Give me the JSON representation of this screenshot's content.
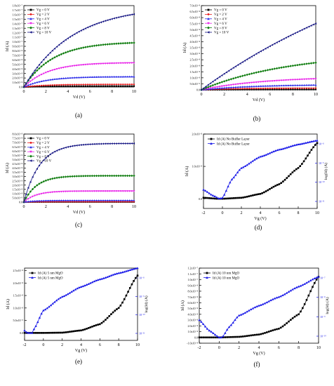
{
  "figure": {
    "panels": [
      "(a)",
      "(b)",
      "(c)",
      "(d)",
      "(e)",
      "(f)"
    ]
  },
  "chart_data": [
    {
      "type": "line",
      "label": "(a)",
      "xlabel": "Vd (V)",
      "ylabel": "Id (A)",
      "xlim": [
        0,
        10
      ],
      "ylim": [
        0,
        1.8e-07
      ],
      "xticks": [
        0,
        2,
        4,
        6,
        8,
        10
      ],
      "yticks": [
        0,
        1e-08,
        2e-08,
        3e-08,
        4e-08,
        5e-08,
        6e-08,
        7e-08,
        8e-08,
        9e-08,
        1e-07,
        1.1e-07,
        1.2e-07,
        1.3e-07,
        1.4e-07,
        1.5e-07,
        1.6e-07,
        1.7e-07,
        1.8e-07
      ],
      "ytick_labels": [
        "0.0",
        "1.0x10⁻⁸",
        "2.0x10⁻⁸",
        "3.0x10⁻⁸",
        "4.0x10⁻⁸",
        "5.0x10⁻⁸",
        "6.0x10⁻⁸",
        "7.0x10⁻⁸",
        "8.0x10⁻⁸",
        "9.0x10⁻⁸",
        "1.0x10⁻⁷",
        "1.1x10⁻⁷",
        "1.2x10⁻⁷",
        "1.3x10⁻⁷",
        "1.4x10⁻⁷",
        "1.5x10⁻⁷",
        "1.6x10⁻⁷",
        "1.7x10⁻⁷",
        "1.8x10⁻⁷"
      ],
      "legend": "top-left",
      "model": "saturation",
      "series": [
        {
          "name": "Vg = 0 V",
          "color": "#000000",
          "marker": "square",
          "sat": 2e-09,
          "k": 0.5
        },
        {
          "name": "Vg = 2 V",
          "color": "#e8191b",
          "marker": "circle",
          "sat": 6e-09,
          "k": 0.5
        },
        {
          "name": "Vg = 4 V",
          "color": "#2a2ae8",
          "marker": "triangle",
          "sat": 2.3e-08,
          "k": 0.5
        },
        {
          "name": "Vg = 6 V",
          "color": "#e820e8",
          "marker": "triangle-down",
          "sat": 5.4e-08,
          "k": 0.45
        },
        {
          "name": "Vg = 8 V",
          "color": "#107d10",
          "marker": "diamond",
          "sat": 1e-07,
          "k": 0.38
        },
        {
          "name": "Vg = 10 V",
          "color": "#101080",
          "marker": "triangle-left",
          "sat": 1.79e-07,
          "k": 0.23
        }
      ]
    },
    {
      "type": "line",
      "label": "(b)",
      "xlabel": "Vd (V)",
      "ylabel": "Id (A)",
      "xlim": [
        0,
        10
      ],
      "ylim": [
        0,
        7e-08
      ],
      "xticks": [
        0,
        2,
        4,
        6,
        8,
        10
      ],
      "yticks": [
        0,
        5e-09,
        1e-08,
        1.5e-08,
        2e-08,
        2.5e-08,
        3e-08,
        3.5e-08,
        4e-08,
        4.5e-08,
        5e-08,
        5.5e-08,
        6e-08,
        6.5e-08,
        7e-08
      ],
      "ytick_labels": [
        "0.0",
        "5.0x10⁻⁹",
        "1.0x10⁻⁸",
        "1.5x10⁻⁸",
        "2.0x10⁻⁸",
        "2.5x10⁻⁸",
        "3.0x10⁻⁸",
        "3.5x10⁻⁸",
        "4.0x10⁻⁸",
        "4.5x10⁻⁸",
        "5.0x10⁻⁸",
        "5.5x10⁻⁸",
        "6.0x10⁻⁸",
        "6.5x10⁻⁸",
        "7.0x10⁻⁸"
      ],
      "legend": "top-left",
      "model": "saturation",
      "series": [
        {
          "name": "Vg = 0 V",
          "color": "#000000",
          "marker": "square",
          "sat": 3e-10,
          "k": 0.3
        },
        {
          "name": "Vg = 2 V",
          "color": "#e8191b",
          "marker": "circle",
          "sat": 1.5e-09,
          "k": 0.3
        },
        {
          "name": "Vg = 4 V",
          "color": "#2a2ae8",
          "marker": "triangle",
          "sat": 4.5e-09,
          "k": 0.22
        },
        {
          "name": "Vg = 6 V",
          "color": "#e820e8",
          "marker": "triangle-down",
          "sat": 1.1e-08,
          "k": 0.18
        },
        {
          "name": "Vg = 8 V",
          "color": "#107d10",
          "marker": "diamond",
          "sat": 3.1e-08,
          "k": 0.13
        },
        {
          "name": "Vg = 10 V",
          "color": "#101080",
          "marker": "triangle-left",
          "sat": 1.4e-07,
          "k": 0.05
        }
      ]
    },
    {
      "type": "line",
      "label": "(c)",
      "xlabel": "Vd (V)",
      "ylabel": "Id (A)",
      "xlim": [
        0,
        10
      ],
      "ylim": [
        0,
        8e-08
      ],
      "xticks": [
        0,
        2,
        4,
        6,
        8,
        10
      ],
      "yticks": [
        0,
        5e-09,
        1e-08,
        1.5e-08,
        2e-08,
        2.5e-08,
        3e-08,
        3.5e-08,
        4e-08,
        4.5e-08,
        5e-08,
        5.5e-08,
        6e-08,
        6.5e-08,
        7e-08,
        7.5e-08,
        8e-08
      ],
      "ytick_labels": [
        "0.0",
        "5.0x10⁻⁹",
        "1.0x10⁻⁸",
        "1.5x10⁻⁸",
        "2.0x10⁻⁸",
        "2.5x10⁻⁸",
        "3.0x10⁻⁸",
        "3.5x10⁻⁸",
        "4.0x10⁻⁸",
        "4.5x10⁻⁸",
        "5.0x10⁻⁸",
        "5.5x10⁻⁸",
        "6.0x10⁻⁸",
        "6.5x10⁻⁸",
        "7.0x10⁻⁸",
        "7.5x10⁻⁸",
        "8.0x10⁻⁸"
      ],
      "legend": "top-left",
      "model": "saturation",
      "series": [
        {
          "name": "Vg = 0 V",
          "color": "#000000",
          "marker": "square",
          "sat": 2e-10,
          "k": 1.0
        },
        {
          "name": "Vg = 2 V",
          "color": "#e8191b",
          "marker": "circle",
          "sat": 5e-10,
          "k": 1.0
        },
        {
          "name": "Vg = 4 V",
          "color": "#2a2ae8",
          "marker": "triangle",
          "sat": 2e-09,
          "k": 1.0
        },
        {
          "name": "Vg = 6 V",
          "color": "#e820e8",
          "marker": "triangle-down",
          "sat": 1.3e-08,
          "k": 0.9
        },
        {
          "name": "Vg = 8 V",
          "color": "#107d10",
          "marker": "diamond",
          "sat": 3.1e-08,
          "k": 0.85
        },
        {
          "name": "Vg = 10 V",
          "color": "#101080",
          "marker": "triangle-left",
          "sat": 6.9e-08,
          "k": 0.7
        }
      ]
    },
    {
      "type": "line",
      "label": "(d)",
      "xlabel": "Vg (V)",
      "ylabel": "Id (A)",
      "ylabel_right": "log(Id) (A)",
      "xlim": [
        -2,
        10
      ],
      "ylim": [
        -3e-09,
        2e-08
      ],
      "xticks": [
        -2,
        0,
        2,
        4,
        6,
        8,
        10
      ],
      "yticks": [
        0,
        1e-08,
        2e-08
      ],
      "ytick_labels": [
        "0.0",
        "1.0x10⁻⁸",
        "2.0x10⁻⁸"
      ],
      "yticks_right_labels": [
        "10⁻⁸",
        "10⁻⁹",
        "10⁻¹⁰",
        "10⁻¹¹"
      ],
      "legend": "top-left",
      "model": "transfer",
      "series": [
        {
          "name": "Id (A) No Buffer Layer",
          "color": "#000000",
          "marker": "square",
          "axis": "left",
          "curve": [
            [
              -2,
              3e-10
            ],
            [
              -0.5,
              0
            ],
            [
              0,
              0
            ],
            [
              2,
              3e-10
            ],
            [
              4,
              1.5e-09
            ],
            [
              6,
              4.5e-09
            ],
            [
              8,
              9.5e-09
            ],
            [
              10,
              1.72e-08
            ]
          ]
        },
        {
          "name": "Id (A) No Buffer Layer",
          "color": "#1a1ae8",
          "marker": "triangle",
          "axis": "right",
          "curve": [
            [
              -2,
              2.8e-09
            ],
            [
              -1,
              1e-09
            ],
            [
              -0.3,
              0
            ],
            [
              0,
              3e-10
            ],
            [
              1,
              6e-09
            ],
            [
              2,
              9.5e-09
            ],
            [
              4,
              1.3e-08
            ],
            [
              6,
              1.52e-08
            ],
            [
              8,
              1.68e-08
            ],
            [
              10,
              1.8e-08
            ]
          ]
        }
      ]
    },
    {
      "type": "line",
      "label": "(e)",
      "xlabel": "Vg (V)",
      "ylabel": "Id (A)",
      "ylabel_right": "log(Id) (A)",
      "xlim": [
        -2,
        10
      ],
      "ylim": [
        -3e-09,
        2.6e-08
      ],
      "xticks": [
        -2,
        0,
        2,
        4,
        6,
        8,
        10
      ],
      "yticks": [
        0,
        5e-09,
        1e-08,
        1.5e-08,
        2e-08,
        2.5e-08
      ],
      "ytick_labels": [
        "0.0",
        "5.0x10⁻⁹",
        "1.0x10⁻⁸",
        "1.5x10⁻⁸",
        "2.0x10⁻⁸",
        "2.5x10⁻⁸"
      ],
      "yticks_right_labels": [
        "10⁻⁸",
        "10⁻⁹",
        "10⁻¹⁰",
        "10⁻¹¹"
      ],
      "legend": "top-left",
      "model": "transfer",
      "series": [
        {
          "name": "Id (A) 5 nm MgO",
          "color": "#000000",
          "marker": "square",
          "axis": "left",
          "curve": [
            [
              -2,
              0
            ],
            [
              0,
              0
            ],
            [
              2,
              1e-10
            ],
            [
              4,
              1e-09
            ],
            [
              6,
              3.5e-09
            ],
            [
              8,
              1e-08
            ],
            [
              10,
              2.3e-08
            ]
          ]
        },
        {
          "name": "Id (A) 5 nm MgO",
          "color": "#1a1ae8",
          "marker": "triangle",
          "axis": "right",
          "curve": [
            [
              -2,
              1e-09
            ],
            [
              -1.7,
              0
            ],
            [
              -1.2,
              0
            ],
            [
              -1,
              1.5e-09
            ],
            [
              0,
              9e-09
            ],
            [
              2,
              1.45e-08
            ],
            [
              4,
              1.85e-08
            ],
            [
              6,
              2.15e-08
            ],
            [
              8,
              2.4e-08
            ],
            [
              10,
              2.6e-08
            ]
          ]
        }
      ]
    },
    {
      "type": "line",
      "label": "(f)",
      "xlabel": "Vg (V)",
      "ylabel": "Id (A)",
      "ylabel_right": "log(Id) (A)",
      "xlim": [
        -2,
        10
      ],
      "ylim": [
        -1e-08,
        1.2e-07
      ],
      "xticks": [
        -2,
        0,
        2,
        4,
        6,
        8,
        10
      ],
      "yticks": [
        -1e-08,
        0,
        1e-08,
        2e-08,
        3e-08,
        4e-08,
        5e-08,
        6e-08,
        7e-08,
        8e-08,
        9e-08,
        1e-07,
        1.1e-07,
        1.2e-07
      ],
      "ytick_labels": [
        "-1.0x10⁻⁸",
        "0.0",
        "1.0x10⁻⁸",
        "2.0x10⁻⁸",
        "3.0x10⁻⁸",
        "4.0x10⁻⁸",
        "5.0x10⁻⁸",
        "6.0x10⁻⁸",
        "7.0x10⁻⁸",
        "8.0x10⁻⁸",
        "9.0x10⁻⁸",
        "1.0x10⁻⁷",
        "1.1x10⁻⁷",
        "1.2x10⁻⁷"
      ],
      "yticks_right_labels": [
        "10⁻⁷",
        "10⁻⁸",
        "10⁻⁹",
        "10⁻¹⁰"
      ],
      "legend": "top-left",
      "model": "transfer",
      "series": [
        {
          "name": "Id (A) 10 nm MgO",
          "color": "#000000",
          "marker": "square",
          "axis": "left",
          "curve": [
            [
              -2,
              0
            ],
            [
              0,
              0
            ],
            [
              2,
              1e-09
            ],
            [
              4,
              5e-09
            ],
            [
              6,
              1.5e-08
            ],
            [
              8,
              4e-08
            ],
            [
              10,
              1.05e-07
            ]
          ]
        },
        {
          "name": "Id (A) 10 nm MgO",
          "color": "#1a1ae8",
          "marker": "triangle",
          "axis": "right",
          "curve": [
            [
              -2,
              3e-08
            ],
            [
              -1,
              1.2e-08
            ],
            [
              0,
              0
            ],
            [
              0.3,
              0
            ],
            [
              1,
              1.8e-08
            ],
            [
              2,
              3.8e-08
            ],
            [
              4,
              5.5e-08
            ],
            [
              6,
              7e-08
            ],
            [
              8,
              8.8e-08
            ],
            [
              10,
              1.05e-07
            ]
          ]
        }
      ]
    }
  ]
}
